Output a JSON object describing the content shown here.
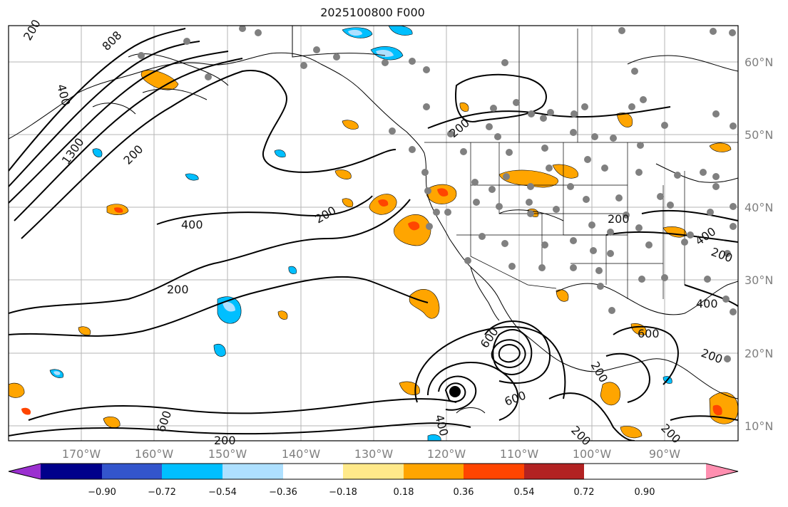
{
  "title": "2025100800 F000",
  "map": {
    "lon_ticks": [
      "170°W",
      "160°W",
      "150°W",
      "140°W",
      "130°W",
      "120°W",
      "110°W",
      "100°W",
      "90°W"
    ],
    "lat_ticks": [
      "60°N",
      "50°N",
      "40°N",
      "30°N",
      "20°N",
      "10°N"
    ],
    "contour_labels": [
      "200",
      "808",
      "400",
      "1300",
      "200",
      "400",
      "200",
      "200",
      "200",
      "200",
      "200",
      "400",
      "200",
      "600",
      "600",
      "400",
      "600",
      "200",
      "600",
      "400",
      "200",
      "200",
      "200"
    ]
  },
  "colorbar": {
    "ticks": [
      "−0.90",
      "−0.72",
      "−0.54",
      "−0.36",
      "−0.18",
      "0.18",
      "0.36",
      "0.54",
      "0.72",
      "0.90"
    ],
    "colors": [
      "#9b30d0",
      "#00008b",
      "#3355cc",
      "#00bfff",
      "#aee0ff",
      "#ffffff",
      "#ffe98a",
      "#ffa500",
      "#ff4500",
      "#b22222",
      "#ff8fb0"
    ]
  }
}
